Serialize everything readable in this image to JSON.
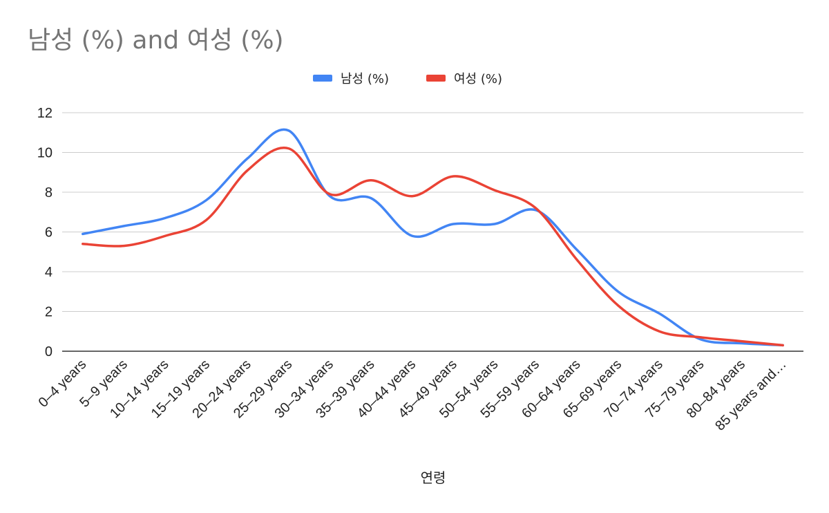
{
  "chart_data": {
    "type": "line",
    "title": "남성 (%) and 여성 (%)",
    "xlabel": "연령",
    "ylabel": "",
    "ylim": [
      0,
      12
    ],
    "yticks": [
      0,
      2,
      4,
      6,
      8,
      10,
      12
    ],
    "grid": true,
    "legend_position": "top",
    "smooth": true,
    "categories": [
      "0–4 years",
      "5–9 years",
      "10–14 years",
      "15–19 years",
      "20–24 years",
      "25–29 years",
      "30–34 years",
      "35–39 years",
      "40–44 years",
      "45–49 years",
      "50–54 years",
      "55–59 years",
      "60–64 years",
      "65–69 years",
      "70–74 years",
      "75–79 years",
      "80–84 years",
      "85 years and…"
    ],
    "series": [
      {
        "name": "남성 (%)",
        "color": "#4285f4",
        "values": [
          5.9,
          6.3,
          6.7,
          7.6,
          9.7,
          11.1,
          7.8,
          7.7,
          5.8,
          6.4,
          6.4,
          7.1,
          5.1,
          3.0,
          1.9,
          0.6,
          0.4,
          0.3
        ]
      },
      {
        "name": "여성 (%)",
        "color": "#ea4335",
        "values": [
          5.4,
          5.3,
          5.8,
          6.6,
          9.1,
          10.2,
          7.9,
          8.6,
          7.8,
          8.8,
          8.1,
          7.2,
          4.6,
          2.3,
          1.0,
          0.7,
          0.5,
          0.3
        ]
      }
    ]
  }
}
